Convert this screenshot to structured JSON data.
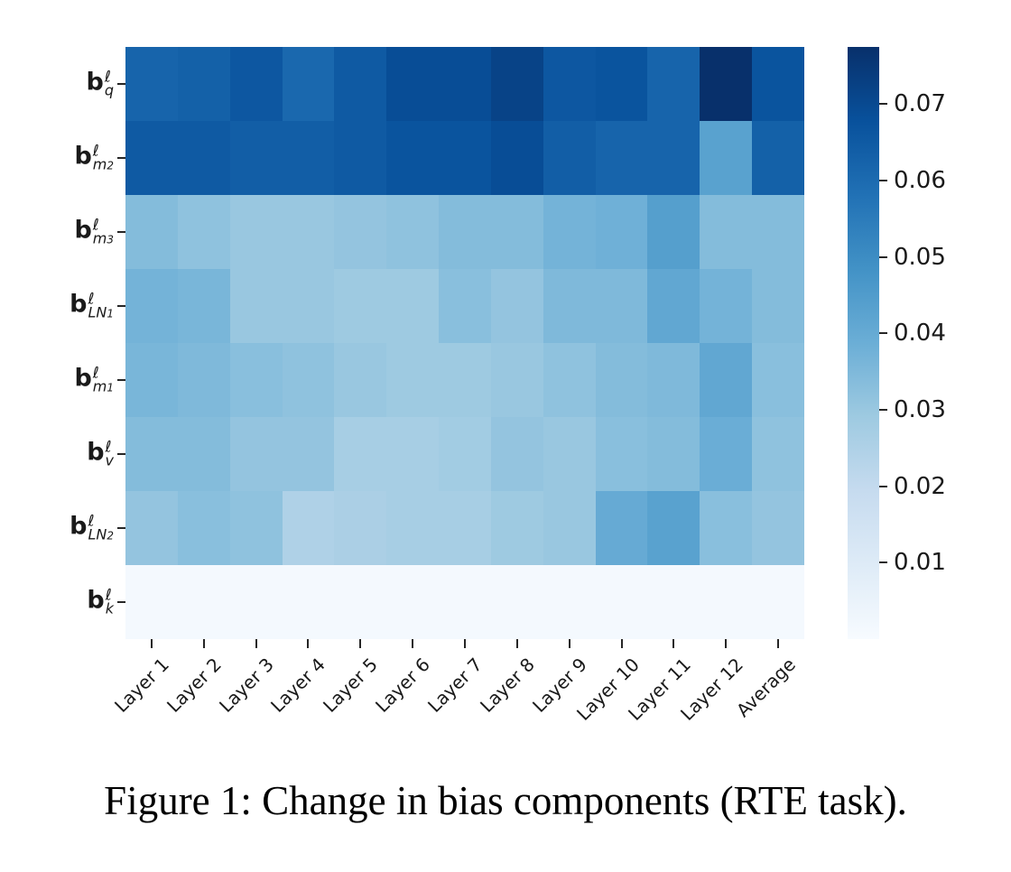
{
  "figure": {
    "caption": "Figure 1: Change in bias components (RTE task)."
  },
  "chart_data": {
    "type": "heatmap",
    "title": "",
    "xlabel": "",
    "ylabel": "",
    "colormap": "Blues",
    "grid": false,
    "legend_position": "right-colorbar",
    "vmin": 0.0,
    "vmax": 0.0775,
    "categories": [
      "Layer 1",
      "Layer 2",
      "Layer 3",
      "Layer 4",
      "Layer 5",
      "Layer 6",
      "Layer 7",
      "Layer 8",
      "Layer 9",
      "Layer 10",
      "Layer 11",
      "Layer 12",
      "Average"
    ],
    "rows": [
      {
        "label": "b^ℓ_q",
        "base": "b",
        "sup": "ℓ",
        "sub": "q",
        "subsub": "",
        "values": [
          0.062,
          0.063,
          0.066,
          0.061,
          0.065,
          0.069,
          0.069,
          0.072,
          0.066,
          0.067,
          0.062,
          0.0775,
          0.067
        ]
      },
      {
        "label": "b^ℓ_m2",
        "base": "b",
        "sup": "ℓ",
        "sub": "m",
        "subsub": "2",
        "values": [
          0.065,
          0.065,
          0.064,
          0.064,
          0.065,
          0.067,
          0.067,
          0.069,
          0.064,
          0.062,
          0.062,
          0.043,
          0.063
        ]
      },
      {
        "label": "b^ℓ_m3",
        "base": "b",
        "sup": "ℓ",
        "sub": "m",
        "subsub": "3",
        "values": [
          0.034,
          0.032,
          0.03,
          0.03,
          0.031,
          0.032,
          0.034,
          0.034,
          0.037,
          0.038,
          0.044,
          0.034,
          0.034
        ]
      },
      {
        "label": "b^ℓ_LN1",
        "base": "b",
        "sup": "ℓ",
        "sub": "LN",
        "subsub": "1",
        "values": [
          0.037,
          0.036,
          0.03,
          0.03,
          0.029,
          0.029,
          0.033,
          0.031,
          0.035,
          0.035,
          0.041,
          0.037,
          0.034
        ]
      },
      {
        "label": "b^ℓ_m1",
        "base": "b",
        "sup": "ℓ",
        "sub": "m",
        "subsub": "1",
        "values": [
          0.036,
          0.035,
          0.033,
          0.032,
          0.03,
          0.029,
          0.029,
          0.03,
          0.032,
          0.034,
          0.035,
          0.041,
          0.033
        ]
      },
      {
        "label": "b^ℓ_v",
        "base": "b",
        "sup": "ℓ",
        "sub": "v",
        "subsub": "",
        "values": [
          0.034,
          0.034,
          0.031,
          0.031,
          0.027,
          0.027,
          0.028,
          0.031,
          0.03,
          0.033,
          0.034,
          0.039,
          0.032
        ]
      },
      {
        "label": "b^ℓ_LN2",
        "base": "b",
        "sup": "ℓ",
        "sub": "LN",
        "subsub": "2",
        "values": [
          0.031,
          0.033,
          0.032,
          0.025,
          0.026,
          0.027,
          0.027,
          0.029,
          0.03,
          0.04,
          0.043,
          0.033,
          0.031
        ]
      },
      {
        "label": "b^ℓ_k",
        "base": "b",
        "sup": "ℓ",
        "sub": "k",
        "subsub": "",
        "values": [
          0.001,
          0.001,
          0.001,
          0.001,
          0.001,
          0.001,
          0.001,
          0.001,
          0.001,
          0.001,
          0.001,
          0.001,
          0.001
        ]
      }
    ],
    "colorbar_ticks": [
      0.07,
      0.06,
      0.05,
      0.04,
      0.03,
      0.02,
      0.01
    ],
    "colorbar_tick_labels": [
      "0.07",
      "0.06",
      "0.05",
      "0.04",
      "0.03",
      "0.02",
      "0.01"
    ]
  }
}
